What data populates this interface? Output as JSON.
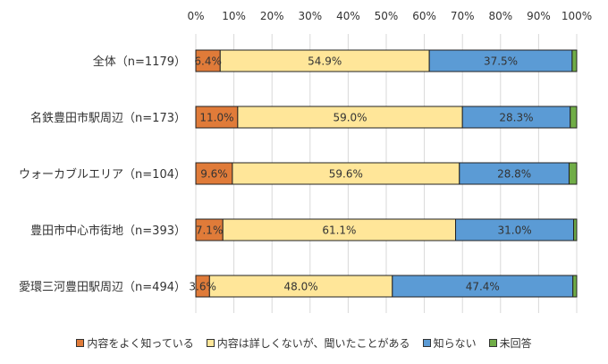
{
  "chart_data": {
    "type": "bar",
    "orientation": "horizontal",
    "stacked": true,
    "percent": true,
    "xlim": [
      0,
      100
    ],
    "x_ticks": [
      "0%",
      "10%",
      "20%",
      "30%",
      "40%",
      "50%",
      "60%",
      "70%",
      "80%",
      "90%",
      "100%"
    ],
    "categories": [
      "全体（n=1179）",
      "名鉄豊田市駅周辺（n=173）",
      "ウォーカブルエリア（n=104）",
      "豊田市中心市街地（n=393）",
      "愛環三河豊田駅周辺（n=494）"
    ],
    "series": [
      {
        "name": "内容をよく知っている",
        "color": "#E07B39",
        "values": [
          6.4,
          11.0,
          9.6,
          7.1,
          3.6
        ],
        "labels": [
          "6.4%",
          "11.0%",
          "9.6%",
          "7.1%",
          "3.6%"
        ]
      },
      {
        "name": "内容は詳しくないが、聞いたことがある",
        "color": "#FFE699",
        "values": [
          54.9,
          59.0,
          59.6,
          61.1,
          48.0
        ],
        "labels": [
          "54.9%",
          "59.0%",
          "59.6%",
          "61.1%",
          "48.0%"
        ]
      },
      {
        "name": "知らない",
        "color": "#5B9BD5",
        "values": [
          37.5,
          28.3,
          28.8,
          31.0,
          47.4
        ],
        "labels": [
          "37.5%",
          "28.3%",
          "28.8%",
          "31.0%",
          "47.4%"
        ]
      },
      {
        "name": "未回答",
        "color": "#70AD47",
        "values": [
          1.2,
          1.7,
          2.0,
          0.8,
          1.0
        ],
        "labels": [
          "",
          "",
          "",
          "",
          ""
        ]
      }
    ],
    "grid": true,
    "legend_position": "bottom"
  }
}
